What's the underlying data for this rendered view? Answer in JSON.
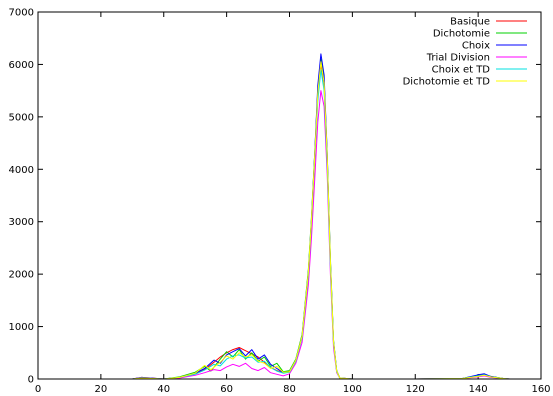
{
  "chart_data": {
    "type": "line",
    "title": "",
    "xlabel": "",
    "ylabel": "",
    "xlim": [
      0,
      160
    ],
    "ylim": [
      0,
      7000
    ],
    "xticks": [
      0,
      20,
      40,
      60,
      80,
      100,
      120,
      140,
      160
    ],
    "yticks": [
      0,
      1000,
      2000,
      3000,
      4000,
      5000,
      6000,
      7000
    ],
    "grid": false,
    "legend_position": "top-right",
    "series": [
      {
        "name": "Basique",
        "color": "#ff0000",
        "x": [
          20,
          30,
          33,
          40,
          45,
          50,
          53,
          56,
          58,
          60,
          62,
          64,
          66,
          68,
          70,
          72,
          74,
          76,
          78,
          80,
          82,
          84,
          86,
          87,
          88,
          89,
          90,
          91,
          92,
          93,
          94,
          95,
          96,
          100,
          120,
          135,
          140,
          142,
          144,
          148,
          150,
          160
        ],
        "y": [
          0,
          0,
          30,
          0,
          30,
          100,
          180,
          320,
          420,
          500,
          560,
          600,
          540,
          480,
          420,
          320,
          220,
          160,
          120,
          150,
          350,
          800,
          2000,
          3000,
          4200,
          5400,
          6000,
          5600,
          4200,
          2200,
          700,
          150,
          20,
          0,
          0,
          10,
          60,
          90,
          40,
          10,
          0,
          0
        ]
      },
      {
        "name": "Dichotomie",
        "color": "#00d000",
        "x": [
          20,
          30,
          33,
          40,
          45,
          50,
          53,
          55,
          58,
          60,
          62,
          64,
          66,
          68,
          70,
          72,
          74,
          76,
          78,
          80,
          82,
          84,
          86,
          87,
          88,
          89,
          90,
          91,
          92,
          93,
          94,
          95,
          96,
          100,
          120,
          135,
          140,
          142,
          144,
          148,
          150,
          160
        ],
        "y": [
          0,
          0,
          20,
          0,
          40,
          130,
          240,
          150,
          380,
          520,
          420,
          560,
          380,
          500,
          340,
          420,
          240,
          300,
          140,
          160,
          380,
          850,
          2100,
          3100,
          4300,
          5500,
          6100,
          5700,
          4300,
          2300,
          750,
          160,
          20,
          0,
          0,
          10,
          70,
          60,
          50,
          10,
          0,
          0
        ]
      },
      {
        "name": "Choix",
        "color": "#0000ff",
        "x": [
          20,
          30,
          33,
          40,
          45,
          50,
          53,
          56,
          58,
          60,
          62,
          64,
          66,
          68,
          70,
          72,
          74,
          76,
          78,
          80,
          82,
          84,
          86,
          87,
          88,
          89,
          90,
          91,
          92,
          93,
          94,
          95,
          96,
          100,
          120,
          135,
          140,
          142,
          144,
          148,
          150,
          160
        ],
        "y": [
          0,
          0,
          30,
          0,
          30,
          110,
          200,
          360,
          300,
          460,
          520,
          580,
          440,
          560,
          380,
          460,
          280,
          200,
          120,
          140,
          360,
          820,
          2050,
          3050,
          4300,
          5600,
          6200,
          5800,
          4300,
          2250,
          720,
          150,
          20,
          0,
          0,
          10,
          80,
          100,
          50,
          10,
          0,
          0
        ]
      },
      {
        "name": "Trial Division",
        "color": "#ff00ff",
        "x": [
          20,
          30,
          33,
          40,
          45,
          50,
          53,
          56,
          58,
          60,
          62,
          64,
          66,
          68,
          70,
          72,
          74,
          76,
          78,
          80,
          82,
          84,
          86,
          87,
          88,
          89,
          90,
          91,
          92,
          93,
          94,
          95,
          96,
          100,
          120,
          135,
          140,
          142,
          144,
          148,
          150,
          160
        ],
        "y": [
          0,
          0,
          20,
          0,
          20,
          70,
          120,
          180,
          160,
          230,
          280,
          240,
          300,
          200,
          160,
          220,
          120,
          90,
          60,
          100,
          300,
          700,
          1800,
          2700,
          3800,
          4900,
          5500,
          5200,
          3900,
          2000,
          600,
          120,
          20,
          0,
          0,
          10,
          40,
          60,
          30,
          10,
          0,
          0
        ]
      },
      {
        "name": "Choix et TD",
        "color": "#00e0e0",
        "x": [
          20,
          30,
          33,
          40,
          45,
          50,
          53,
          56,
          58,
          60,
          62,
          64,
          66,
          68,
          70,
          72,
          74,
          76,
          78,
          80,
          82,
          84,
          86,
          87,
          88,
          89,
          90,
          91,
          92,
          93,
          94,
          95,
          96,
          100,
          120,
          135,
          140,
          142,
          144,
          148,
          150,
          160
        ],
        "y": [
          0,
          0,
          20,
          0,
          30,
          90,
          170,
          280,
          250,
          380,
          440,
          460,
          400,
          420,
          320,
          340,
          220,
          150,
          110,
          130,
          340,
          790,
          2000,
          3000,
          4200,
          5300,
          5900,
          5500,
          4100,
          2150,
          690,
          140,
          20,
          0,
          0,
          10,
          60,
          80,
          40,
          10,
          0,
          0
        ]
      },
      {
        "name": "Dichotomie et TD",
        "color": "#ffff00",
        "x": [
          20,
          30,
          33,
          40,
          45,
          50,
          53,
          55,
          58,
          60,
          62,
          64,
          66,
          68,
          70,
          72,
          74,
          76,
          78,
          80,
          82,
          84,
          86,
          87,
          88,
          89,
          90,
          91,
          92,
          93,
          94,
          95,
          96,
          100,
          120,
          135,
          140,
          142,
          144,
          148,
          150,
          160
        ],
        "y": [
          0,
          0,
          20,
          0,
          30,
          110,
          260,
          180,
          320,
          440,
          380,
          500,
          420,
          460,
          340,
          300,
          200,
          240,
          130,
          140,
          360,
          820,
          2050,
          3050,
          4250,
          5450,
          6050,
          5650,
          4250,
          2250,
          720,
          150,
          20,
          0,
          0,
          10,
          50,
          70,
          40,
          10,
          0,
          0
        ]
      }
    ]
  }
}
